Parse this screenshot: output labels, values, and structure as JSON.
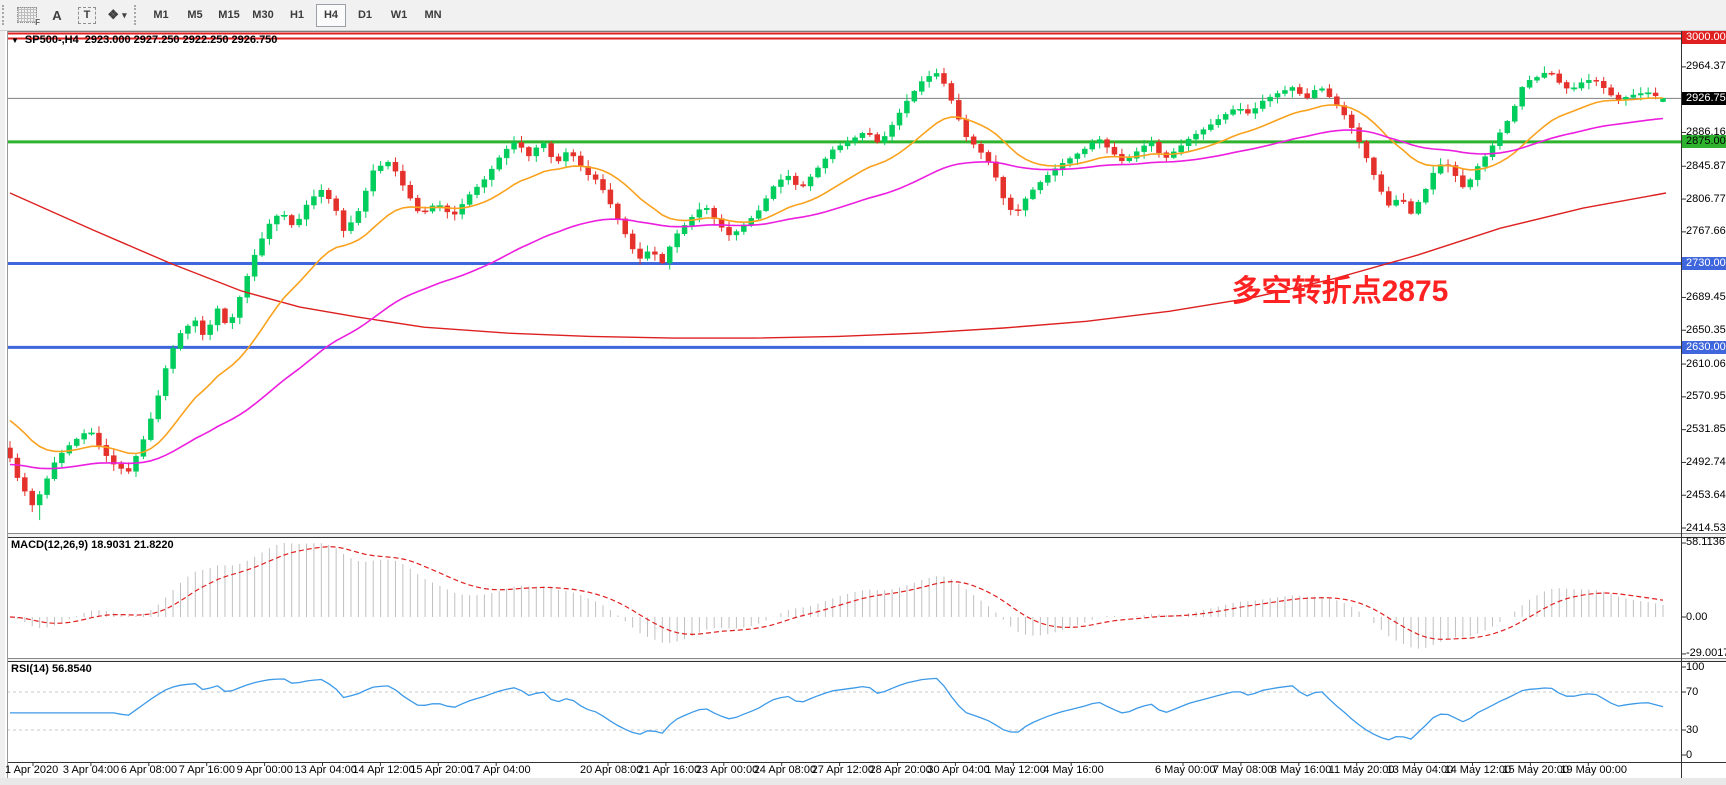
{
  "toolbar": {
    "tools": [
      {
        "name": "grid-f-tool",
        "label": "F"
      },
      {
        "name": "text-label-tool",
        "label": "A"
      },
      {
        "name": "text-box-tool",
        "label": "T"
      },
      {
        "name": "arrow-objects-tool",
        "label": "❖"
      }
    ],
    "timeframes": [
      "M1",
      "M5",
      "M15",
      "M30",
      "H1",
      "H4",
      "D1",
      "W1",
      "MN"
    ],
    "active_timeframe": "H4"
  },
  "chart": {
    "title_symbol": "SP500-,H4",
    "title_ohlc": "2923.000 2927.250 2922.250 2926.750",
    "annotation": "多空转折点2875"
  },
  "price_axis": {
    "labels": [
      {
        "text": "3000.000",
        "price": 3000.0,
        "style": "red"
      },
      {
        "text": "2964.375",
        "price": 2964.375,
        "style": "plain"
      },
      {
        "text": "2926.750",
        "price": 2926.75,
        "style": "black"
      },
      {
        "text": "2886.165",
        "price": 2886.165,
        "style": "plain"
      },
      {
        "text": "2875.000",
        "price": 2875.0,
        "style": "green"
      },
      {
        "text": "2845.875",
        "price": 2845.875,
        "style": "plain"
      },
      {
        "text": "2806.770",
        "price": 2806.77,
        "style": "plain"
      },
      {
        "text": "2767.665",
        "price": 2767.665,
        "style": "plain"
      },
      {
        "text": "2730.000",
        "price": 2730.0,
        "style": "blue"
      },
      {
        "text": "2689.455",
        "price": 2689.455,
        "style": "plain"
      },
      {
        "text": "2650.350",
        "price": 2650.35,
        "style": "plain"
      },
      {
        "text": "2630.000",
        "price": 2630.0,
        "style": "blue"
      },
      {
        "text": "2610.060",
        "price": 2610.06,
        "style": "plain"
      },
      {
        "text": "2570.955",
        "price": 2570.955,
        "style": "plain"
      },
      {
        "text": "2531.850",
        "price": 2531.85,
        "style": "plain"
      },
      {
        "text": "2492.745",
        "price": 2492.745,
        "style": "plain"
      },
      {
        "text": "2453.640",
        "price": 2453.64,
        "style": "plain"
      },
      {
        "text": "2414.535",
        "price": 2414.535,
        "style": "plain"
      }
    ]
  },
  "time_axis": {
    "labels": [
      "1 Apr 2020",
      "3 Apr 04:00",
      "6 Apr 08:00",
      "7 Apr 16:00",
      "9 Apr 00:00",
      "13 Apr 04:00",
      "14 Apr 12:00",
      "15 Apr 20:00",
      "17 Apr 04:00",
      "20 Apr 08:00",
      "21 Apr 16:00",
      "23 Apr 00:00",
      "24 Apr 08:00",
      "27 Apr 12:00",
      "28 Apr 20:00",
      "30 Apr 04:00",
      "1 May 12:00",
      "4 May 16:00",
      "6 May 00:00",
      "7 May 08:00",
      "8 May 16:00",
      "11 May 20:00",
      "13 May 04:00",
      "14 May 12:00",
      "15 May 20:00",
      "19 May 00:00"
    ]
  },
  "macd": {
    "label": "MACD(12,26,9) 18.9031 21.8220",
    "axis": [
      {
        "text": "58.1136",
        "value": 58.1136
      },
      {
        "text": "0.00",
        "value": 0
      },
      {
        "text": "-29.0017",
        "value": -29.0017
      }
    ]
  },
  "rsi": {
    "label": "RSI(14) 56.8540",
    "axis": [
      {
        "text": "100",
        "value": 100
      },
      {
        "text": "70",
        "value": 70
      },
      {
        "text": "30",
        "value": 30
      },
      {
        "text": "0",
        "value": 0
      }
    ],
    "dashed_levels": [
      70,
      30
    ]
  },
  "colors": {
    "bull": "#00cd5c",
    "bear": "#e5312b",
    "ma_fast": "#faa21e",
    "ma_mid": "#ec1fe0",
    "ma_slow": "#dd2020",
    "macd_hist": "#c0c0c0",
    "macd_signal": "#e02020",
    "rsi_line": "#3d9ae8",
    "level_red": "#e02020",
    "level_green": "#2eb32e",
    "level_blue": "#3f66dd",
    "level_current": "#808080"
  },
  "chart_data": {
    "type": "candlestick",
    "symbol": "SP500-",
    "timeframe": "H4",
    "bars": 224,
    "price_range_visible": [
      2414.535,
      3004.0
    ],
    "ohlc_current": {
      "open": 2923.0,
      "high": 2927.25,
      "low": 2922.25,
      "close": 2926.75
    },
    "horizontal_levels": [
      {
        "price": 3000.0,
        "style": "red-double"
      },
      {
        "price": 2926.75,
        "style": "current"
      },
      {
        "price": 2875.0,
        "style": "green"
      },
      {
        "price": 2730.0,
        "style": "blue"
      },
      {
        "price": 2630.0,
        "style": "blue"
      }
    ],
    "close_path": [
      [
        0.0,
        2498
      ],
      [
        0.005,
        2472
      ],
      [
        0.01,
        2455
      ],
      [
        0.014,
        2440
      ],
      [
        0.02,
        2462
      ],
      [
        0.026,
        2490
      ],
      [
        0.033,
        2508
      ],
      [
        0.04,
        2520
      ],
      [
        0.048,
        2532
      ],
      [
        0.056,
        2506
      ],
      [
        0.064,
        2488
      ],
      [
        0.072,
        2482
      ],
      [
        0.08,
        2516
      ],
      [
        0.088,
        2560
      ],
      [
        0.096,
        2618
      ],
      [
        0.104,
        2650
      ],
      [
        0.112,
        2662
      ],
      [
        0.118,
        2640
      ],
      [
        0.125,
        2678
      ],
      [
        0.132,
        2652
      ],
      [
        0.14,
        2695
      ],
      [
        0.148,
        2740
      ],
      [
        0.156,
        2775
      ],
      [
        0.164,
        2792
      ],
      [
        0.172,
        2772
      ],
      [
        0.18,
        2802
      ],
      [
        0.188,
        2818
      ],
      [
        0.196,
        2800
      ],
      [
        0.202,
        2768
      ],
      [
        0.21,
        2788
      ],
      [
        0.22,
        2842
      ],
      [
        0.23,
        2852
      ],
      [
        0.238,
        2822
      ],
      [
        0.248,
        2788
      ],
      [
        0.258,
        2802
      ],
      [
        0.268,
        2786
      ],
      [
        0.278,
        2812
      ],
      [
        0.288,
        2832
      ],
      [
        0.298,
        2862
      ],
      [
        0.306,
        2876
      ],
      [
        0.314,
        2858
      ],
      [
        0.322,
        2876
      ],
      [
        0.33,
        2848
      ],
      [
        0.338,
        2866
      ],
      [
        0.348,
        2838
      ],
      [
        0.356,
        2828
      ],
      [
        0.364,
        2798
      ],
      [
        0.372,
        2766
      ],
      [
        0.38,
        2734
      ],
      [
        0.388,
        2748
      ],
      [
        0.394,
        2728
      ],
      [
        0.402,
        2762
      ],
      [
        0.412,
        2784
      ],
      [
        0.42,
        2800
      ],
      [
        0.428,
        2778
      ],
      [
        0.436,
        2762
      ],
      [
        0.444,
        2776
      ],
      [
        0.452,
        2790
      ],
      [
        0.462,
        2822
      ],
      [
        0.47,
        2836
      ],
      [
        0.478,
        2818
      ],
      [
        0.488,
        2842
      ],
      [
        0.498,
        2866
      ],
      [
        0.508,
        2876
      ],
      [
        0.518,
        2888
      ],
      [
        0.526,
        2872
      ],
      [
        0.534,
        2896
      ],
      [
        0.542,
        2922
      ],
      [
        0.552,
        2948
      ],
      [
        0.56,
        2958
      ],
      [
        0.566,
        2942
      ],
      [
        0.572,
        2912
      ],
      [
        0.578,
        2882
      ],
      [
        0.586,
        2866
      ],
      [
        0.594,
        2846
      ],
      [
        0.602,
        2802
      ],
      [
        0.608,
        2788
      ],
      [
        0.616,
        2812
      ],
      [
        0.626,
        2832
      ],
      [
        0.634,
        2846
      ],
      [
        0.642,
        2856
      ],
      [
        0.65,
        2866
      ],
      [
        0.658,
        2880
      ],
      [
        0.666,
        2864
      ],
      [
        0.674,
        2850
      ],
      [
        0.682,
        2864
      ],
      [
        0.69,
        2876
      ],
      [
        0.698,
        2854
      ],
      [
        0.706,
        2866
      ],
      [
        0.714,
        2880
      ],
      [
        0.724,
        2892
      ],
      [
        0.734,
        2906
      ],
      [
        0.742,
        2916
      ],
      [
        0.75,
        2908
      ],
      [
        0.758,
        2924
      ],
      [
        0.766,
        2932
      ],
      [
        0.776,
        2940
      ],
      [
        0.784,
        2926
      ],
      [
        0.792,
        2942
      ],
      [
        0.8,
        2925
      ],
      [
        0.808,
        2905
      ],
      [
        0.815,
        2880
      ],
      [
        0.822,
        2850
      ],
      [
        0.829,
        2818
      ],
      [
        0.835,
        2796
      ],
      [
        0.841,
        2812
      ],
      [
        0.847,
        2788
      ],
      [
        0.855,
        2812
      ],
      [
        0.862,
        2842
      ],
      [
        0.868,
        2852
      ],
      [
        0.874,
        2836
      ],
      [
        0.88,
        2818
      ],
      [
        0.888,
        2846
      ],
      [
        0.895,
        2864
      ],
      [
        0.902,
        2888
      ],
      [
        0.908,
        2906
      ],
      [
        0.916,
        2946
      ],
      [
        0.924,
        2952
      ],
      [
        0.931,
        2960
      ],
      [
        0.938,
        2944
      ],
      [
        0.944,
        2936
      ],
      [
        0.951,
        2946
      ],
      [
        0.958,
        2950
      ],
      [
        0.965,
        2938
      ],
      [
        0.972,
        2924
      ],
      [
        0.98,
        2930
      ],
      [
        0.99,
        2934
      ],
      [
        1.0,
        2926.75
      ]
    ],
    "ma_slow_path": [
      [
        0.0,
        2814
      ],
      [
        0.05,
        2770
      ],
      [
        0.097,
        2730
      ],
      [
        0.14,
        2697
      ],
      [
        0.175,
        2678
      ],
      [
        0.21,
        2666
      ],
      [
        0.25,
        2654
      ],
      [
        0.3,
        2647
      ],
      [
        0.35,
        2643
      ],
      [
        0.4,
        2641
      ],
      [
        0.45,
        2641
      ],
      [
        0.5,
        2643
      ],
      [
        0.55,
        2647
      ],
      [
        0.6,
        2653
      ],
      [
        0.65,
        2661
      ],
      [
        0.7,
        2673
      ],
      [
        0.75,
        2689
      ],
      [
        0.8,
        2712
      ],
      [
        0.85,
        2740
      ],
      [
        0.9,
        2772
      ],
      [
        0.95,
        2796
      ],
      [
        1.0,
        2814
      ]
    ],
    "ma_fast_period": 18,
    "ma_mid_period": 55
  }
}
